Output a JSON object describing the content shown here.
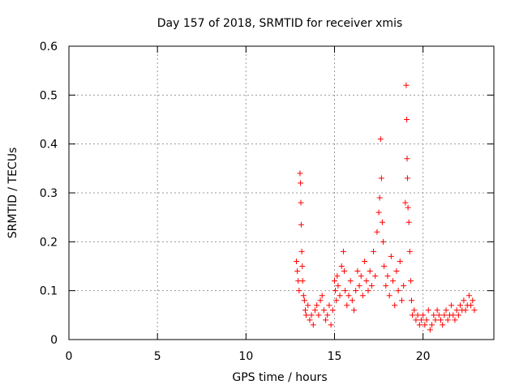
{
  "chart_data": {
    "type": "scatter",
    "title": "Day 157 of 2018, SRMTID for receiver xmis",
    "xlabel": "GPS time / hours",
    "ylabel": "SRMTID / TECUs",
    "xlim": [
      0,
      24
    ],
    "ylim": [
      0,
      0.6
    ],
    "x_ticks": [
      0,
      5,
      10,
      15,
      20
    ],
    "x_tick_labels": [
      "0",
      "5",
      "10",
      "15",
      "20"
    ],
    "y_ticks": [
      0,
      0.1,
      0.2,
      0.3,
      0.4,
      0.5,
      0.6
    ],
    "y_tick_labels": [
      "0",
      "0.1",
      "0.2",
      "0.3",
      "0.4",
      "0.5",
      "0.6"
    ],
    "grid": true,
    "marker": "+",
    "color": "#ff0000",
    "series": [
      {
        "name": "SRMTID",
        "points": [
          [
            12.85,
            0.16
          ],
          [
            12.9,
            0.14
          ],
          [
            12.95,
            0.12
          ],
          [
            13.0,
            0.1
          ],
          [
            13.05,
            0.34
          ],
          [
            13.08,
            0.32
          ],
          [
            13.1,
            0.28
          ],
          [
            13.12,
            0.235
          ],
          [
            13.15,
            0.18
          ],
          [
            13.18,
            0.15
          ],
          [
            13.2,
            0.12
          ],
          [
            13.25,
            0.09
          ],
          [
            13.3,
            0.08
          ],
          [
            13.35,
            0.06
          ],
          [
            13.4,
            0.05
          ],
          [
            13.5,
            0.07
          ],
          [
            13.6,
            0.04
          ],
          [
            13.7,
            0.05
          ],
          [
            13.8,
            0.03
          ],
          [
            13.9,
            0.06
          ],
          [
            14.0,
            0.07
          ],
          [
            14.1,
            0.05
          ],
          [
            14.2,
            0.08
          ],
          [
            14.3,
            0.09
          ],
          [
            14.4,
            0.06
          ],
          [
            14.5,
            0.04
          ],
          [
            14.6,
            0.05
          ],
          [
            14.7,
            0.07
          ],
          [
            14.8,
            0.03
          ],
          [
            14.9,
            0.06
          ],
          [
            15.0,
            0.12
          ],
          [
            15.05,
            0.1
          ],
          [
            15.1,
            0.08
          ],
          [
            15.15,
            0.13
          ],
          [
            15.2,
            0.11
          ],
          [
            15.3,
            0.09
          ],
          [
            15.4,
            0.15
          ],
          [
            15.5,
            0.18
          ],
          [
            15.55,
            0.14
          ],
          [
            15.6,
            0.1
          ],
          [
            15.7,
            0.07
          ],
          [
            15.8,
            0.09
          ],
          [
            15.9,
            0.12
          ],
          [
            16.0,
            0.08
          ],
          [
            16.1,
            0.06
          ],
          [
            16.2,
            0.1
          ],
          [
            16.3,
            0.14
          ],
          [
            16.4,
            0.11
          ],
          [
            16.5,
            0.13
          ],
          [
            16.6,
            0.09
          ],
          [
            16.7,
            0.16
          ],
          [
            16.8,
            0.12
          ],
          [
            16.9,
            0.1
          ],
          [
            17.0,
            0.14
          ],
          [
            17.1,
            0.11
          ],
          [
            17.2,
            0.18
          ],
          [
            17.3,
            0.13
          ],
          [
            17.4,
            0.22
          ],
          [
            17.5,
            0.26
          ],
          [
            17.55,
            0.29
          ],
          [
            17.6,
            0.41
          ],
          [
            17.65,
            0.33
          ],
          [
            17.7,
            0.24
          ],
          [
            17.75,
            0.2
          ],
          [
            17.8,
            0.15
          ],
          [
            17.9,
            0.11
          ],
          [
            18.0,
            0.13
          ],
          [
            18.1,
            0.09
          ],
          [
            18.2,
            0.17
          ],
          [
            18.3,
            0.12
          ],
          [
            18.4,
            0.07
          ],
          [
            18.5,
            0.14
          ],
          [
            18.6,
            0.1
          ],
          [
            18.7,
            0.16
          ],
          [
            18.8,
            0.08
          ],
          [
            18.9,
            0.11
          ],
          [
            19.0,
            0.28
          ],
          [
            19.05,
            0.52
          ],
          [
            19.08,
            0.45
          ],
          [
            19.1,
            0.37
          ],
          [
            19.12,
            0.33
          ],
          [
            19.15,
            0.27
          ],
          [
            19.2,
            0.24
          ],
          [
            19.25,
            0.18
          ],
          [
            19.3,
            0.12
          ],
          [
            19.35,
            0.08
          ],
          [
            19.4,
            0.05
          ],
          [
            19.5,
            0.06
          ],
          [
            19.6,
            0.04
          ],
          [
            19.7,
            0.05
          ],
          [
            19.8,
            0.03
          ],
          [
            19.9,
            0.04
          ],
          [
            20.0,
            0.05
          ],
          [
            20.1,
            0.03
          ],
          [
            20.2,
            0.04
          ],
          [
            20.3,
            0.06
          ],
          [
            20.4,
            0.02
          ],
          [
            20.5,
            0.03
          ],
          [
            20.6,
            0.05
          ],
          [
            20.7,
            0.04
          ],
          [
            20.8,
            0.06
          ],
          [
            20.9,
            0.05
          ],
          [
            21.0,
            0.04
          ],
          [
            21.1,
            0.03
          ],
          [
            21.2,
            0.05
          ],
          [
            21.3,
            0.06
          ],
          [
            21.4,
            0.04
          ],
          [
            21.5,
            0.05
          ],
          [
            21.6,
            0.07
          ],
          [
            21.7,
            0.05
          ],
          [
            21.8,
            0.04
          ],
          [
            21.9,
            0.06
          ],
          [
            22.0,
            0.05
          ],
          [
            22.1,
            0.07
          ],
          [
            22.2,
            0.06
          ],
          [
            22.3,
            0.08
          ],
          [
            22.4,
            0.06
          ],
          [
            22.5,
            0.07
          ],
          [
            22.6,
            0.09
          ],
          [
            22.7,
            0.07
          ],
          [
            22.8,
            0.08
          ],
          [
            22.9,
            0.06
          ]
        ]
      }
    ]
  }
}
